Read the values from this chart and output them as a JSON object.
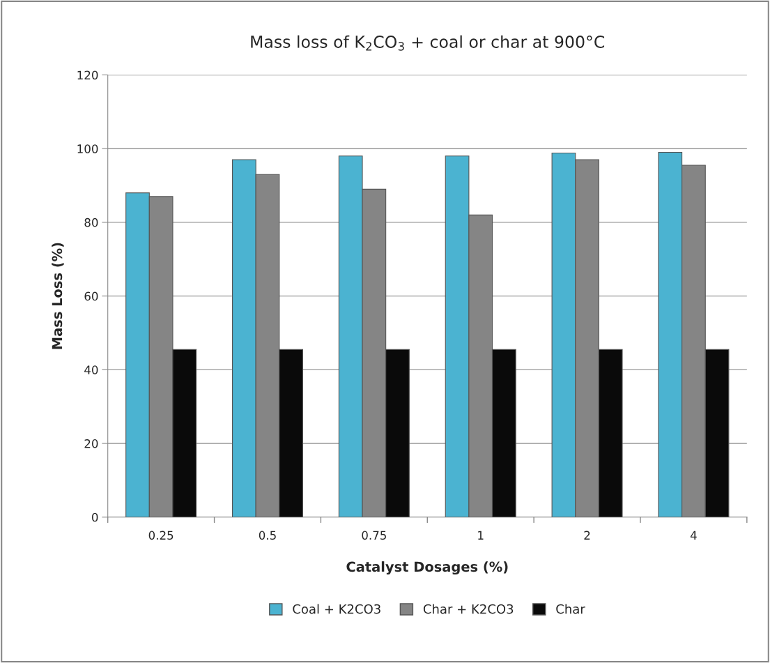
{
  "chart_data": {
    "type": "bar",
    "title": "Mass loss of K$_{2}$CO$_{3}$ + coal or char at 900°C",
    "xlabel": "Catalyst Dosages (%)",
    "ylabel": "Mass Loss (%)",
    "categories": [
      "0.25",
      "0.5",
      "0.75",
      "1",
      "2",
      "4"
    ],
    "series": [
      {
        "name": "Coal + K2CO3",
        "color": "#4bb3d1",
        "values": [
          88,
          97,
          98,
          98,
          98.8,
          99
        ]
      },
      {
        "name": "Char + K2CO3",
        "color": "#858585",
        "values": [
          87,
          93,
          89,
          82,
          97,
          95.5
        ]
      },
      {
        "name": "Char",
        "color": "#0a0a0a",
        "values": [
          45.5,
          45.5,
          45.5,
          45.5,
          45.5,
          45.5
        ]
      }
    ],
    "ylim": [
      0,
      120
    ],
    "yticks": [
      0,
      20,
      40,
      60,
      80,
      100,
      120
    ],
    "grid": "y",
    "legend": "bottom"
  }
}
